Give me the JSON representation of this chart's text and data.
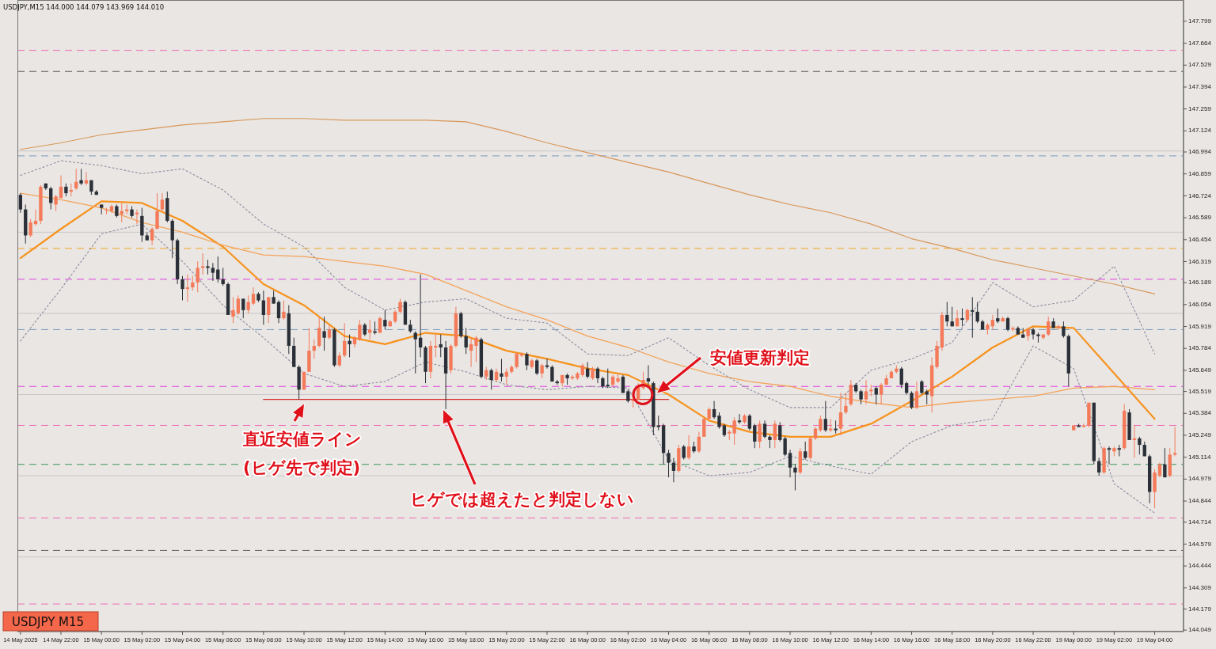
{
  "chart_data": {
    "type": "candlestick",
    "categories": [
      "14 May 2025",
      null,
      null,
      null,
      null,
      null,
      null,
      null,
      "14 May 22:00",
      null,
      null,
      null,
      null,
      null,
      null,
      null,
      "15 May 00:00",
      null,
      null,
      null,
      null,
      null,
      null,
      null,
      "15 May 02:00",
      null,
      null,
      null,
      null,
      null,
      null,
      null,
      "15 May 04:00",
      null,
      null,
      null,
      null,
      null,
      null,
      null,
      "15 May 06:00",
      null,
      null,
      null,
      null,
      null,
      null,
      null,
      "15 May 08:00",
      null,
      null,
      null,
      null,
      null,
      null,
      null,
      "15 May 10:00",
      null,
      null,
      null,
      null,
      null,
      null,
      null,
      "15 May 12:00",
      null,
      null,
      null,
      null,
      null,
      null,
      null,
      "15 May 14:00",
      null,
      null,
      null,
      null,
      null,
      null,
      null,
      "15 May 16:00",
      null,
      null,
      null,
      null,
      null,
      null,
      null,
      "15 May 18:00",
      null,
      null,
      null,
      null,
      null,
      null,
      null,
      "15 May 20:00",
      null,
      null,
      null,
      null,
      null,
      null,
      null,
      "15 May 22:00",
      null,
      null,
      null,
      null,
      null,
      null,
      null,
      "16 May 00:00",
      null,
      null,
      null,
      null,
      null,
      null,
      null,
      "16 May 02:00",
      null,
      null,
      null,
      null,
      null,
      null,
      null,
      "16 May 04:00",
      null,
      null,
      null,
      null,
      null,
      null,
      null,
      "16 May 06:00",
      null,
      null,
      null,
      null,
      null,
      null,
      null,
      "16 May 08:00",
      null,
      null,
      null,
      null,
      null,
      null,
      null,
      "16 May 10:00",
      null,
      null,
      null,
      null,
      null,
      null,
      null,
      "16 May 12:00",
      null,
      null,
      null,
      null,
      null,
      null,
      null,
      "16 May 14:00",
      null,
      null,
      null,
      null,
      null,
      null,
      null,
      "16 May 16:00",
      null,
      null,
      null,
      null,
      null,
      null,
      null,
      "16 May 18:00",
      null,
      null,
      null,
      null,
      null,
      null,
      null,
      "16 May 20:00",
      null,
      null,
      null,
      null,
      null,
      null,
      null,
      "16 May 22:00",
      null,
      null,
      null,
      null,
      null,
      null,
      null,
      "19 May 00:00",
      null,
      null,
      null,
      null,
      null,
      null,
      null,
      "19 May 02:00",
      null,
      null,
      null,
      null,
      null,
      null,
      null,
      "19 May 04:00",
      null,
      null,
      null,
      null
    ],
    "colors": [
      "#2b3038",
      "#2b3038",
      "#f47a5a",
      "#f47a5a",
      "#f47a5a",
      "#2b3038",
      "#2b3038",
      "#f47a5a",
      "#f47a5a",
      "#2b3038",
      "#f47a5a",
      "#f47a5a",
      "#2b3038",
      "#f47a5a",
      "#2b3038",
      "#2b3038",
      "#2b3038",
      "#f47a5a",
      "#f47a5a",
      "#2b3038",
      "#f47a5a",
      "#f47a5a",
      "#2b3038",
      "#f47a5a",
      "#2b3038",
      "#2b3038",
      "#f47a5a",
      "#f47a5a",
      "#f47a5a",
      "#2b3038",
      "#2b3038",
      "#2b3038",
      "#2b3038",
      "#f47a5a",
      "#f47a5a",
      "#f47a5a",
      "#f47a5a",
      "#2b3038",
      "#2b3038",
      "#2b3038",
      "#2b3038",
      "#2b3038",
      "#f47a5a",
      "#f47a5a",
      "#2b3038",
      "#f47a5a",
      "#f47a5a",
      "#2b3038",
      "#2b3038",
      "#f47a5a",
      "#2b3038",
      "#2b3038",
      "#f47a5a",
      "#2b3038",
      "#2b3038",
      "#2b3038",
      "#f47a5a",
      "#f47a5a",
      "#f47a5a",
      "#f47a5a",
      "#2b3038",
      "#f47a5a",
      "#2b3038",
      "#f47a5a",
      "#f47a5a",
      "#2b3038",
      "#f47a5a",
      "#f47a5a",
      "#2b3038",
      "#f47a5a",
      "#2b3038",
      "#f47a5a",
      "#2b3038",
      "#f47a5a",
      "#f47a5a",
      "#f47a5a",
      "#2b3038",
      "#2b3038",
      "#2b3038",
      "#2b3038",
      "#2b3038",
      "#f47a5a",
      "#f47a5a",
      "#2b3038",
      "#2b3038",
      "#f47a5a",
      "#f47a5a",
      "#2b3038",
      "#2b3038",
      "#f47a5a",
      "#f47a5a",
      "#2b3038",
      "#f47a5a",
      "#2b3038",
      "#f47a5a",
      "#2b3038",
      "#f47a5a",
      "#f47a5a",
      "#f47a5a",
      "#f47a5a",
      "#2b3038",
      "#f47a5a",
      "#2b3038",
      "#f47a5a",
      "#2b3038",
      "#2b3038",
      "#2b3038",
      "#f47a5a",
      "#2b3038",
      "#f47a5a",
      "#f47a5a",
      "#f47a5a",
      "#2b3038",
      "#f47a5a",
      "#2b3038",
      "#2b3038",
      "#2b3038",
      "#f47a5a",
      "#f47a5a",
      "#2b3038",
      "#2b3038",
      "#f47a5a",
      "#f47a5a",
      "#f47a5a",
      "#2b3038",
      "#2b3038",
      "#2b3038",
      "#2b3038",
      "#2b3038",
      "#2b3038",
      "#f47a5a",
      "#2b3038",
      "#f47a5a",
      "#2b3038",
      "#f47a5a",
      "#f47a5a",
      "#f47a5a",
      "#2b3038",
      "#2b3038",
      "#2b3038",
      "#f47a5a",
      "#f47a5a",
      "#2b3038",
      "#f47a5a",
      "#2b3038",
      "#2b3038",
      "#f47a5a",
      "#2b3038",
      "#2b3038",
      "#f47a5a",
      "#2b3038",
      "#2b3038",
      "#2b3038",
      "#2b3038",
      "#f47a5a",
      "#2b3038",
      "#f47a5a",
      "#f47a5a",
      "#f47a5a",
      "#2b3038",
      "#f47a5a",
      "#2b3038",
      "#f47a5a",
      "#f47a5a",
      "#f47a5a",
      "#2b3038",
      "#2b3038",
      "#f47a5a",
      "#f47a5a",
      "#2b3038",
      "#f47a5a",
      "#f47a5a",
      "#f47a5a",
      "#f47a5a",
      "#2b3038",
      "#2b3038",
      "#2b3038",
      "#f47a5a",
      "#2b3038",
      "#2b3038",
      "#f47a5a",
      "#f47a5a",
      "#f47a5a",
      "#2b3038",
      "#2b3038",
      "#f47a5a",
      "#2b3038",
      "#f47a5a",
      "#2b3038",
      "#2b3038",
      "#2b3038",
      "#f47a5a",
      "#f47a5a",
      "#2b3038",
      "#f47a5a",
      "#2b3038",
      "#f47a5a",
      "#2b3038",
      "#2b3038",
      "#f47a5a",
      "#2b3038",
      "#2b3038",
      "#f47a5a",
      "#f47a5a",
      "#2b3038",
      "#f47a5a",
      "#2b3038",
      "#2b3038",
      "#f47a5a",
      "#2b3038",
      "#f47a5a",
      "#f47a5a",
      "#2b3038",
      "#2b3038",
      "#f47a5a",
      "#2b3038",
      "#f47a5a",
      "#2b3038",
      "#f47a5a",
      "#2b3038",
      "#f47a5a",
      "#2b3038",
      "#2b3038",
      "#2b3038",
      "#f47a5a",
      "#f47a5a",
      "#2b3038",
      "#f47a5a",
      "#f47a5a"
    ],
    "ohlc": [
      [
        146.73,
        146.74,
        146.62,
        146.64
      ],
      [
        146.64,
        146.67,
        146.43,
        146.48
      ],
      [
        146.48,
        146.58,
        146.47,
        146.56
      ],
      [
        146.55,
        146.64,
        146.54,
        146.57
      ],
      [
        146.57,
        146.79,
        146.55,
        146.78
      ],
      [
        146.8,
        146.8,
        146.76,
        146.77
      ],
      [
        146.77,
        146.78,
        146.64,
        146.68
      ],
      [
        146.67,
        146.73,
        146.63,
        146.72
      ],
      [
        146.71,
        146.85,
        146.71,
        146.78
      ],
      [
        146.78,
        146.8,
        146.72,
        146.74
      ],
      [
        146.75,
        146.8,
        146.72,
        146.76
      ],
      [
        146.77,
        146.89,
        146.76,
        146.81
      ],
      [
        146.82,
        146.89,
        146.79,
        146.8
      ],
      [
        146.8,
        146.87,
        146.79,
        146.82
      ],
      [
        146.82,
        146.82,
        146.73,
        146.75
      ],
      [
        146.75,
        146.76,
        146.73,
        146.73
      ],
      [
        146.67,
        146.67,
        146.61,
        146.65
      ],
      [
        146.64,
        146.65,
        146.61,
        146.64
      ],
      [
        146.63,
        146.67,
        146.62,
        146.66
      ],
      [
        146.66,
        146.67,
        146.59,
        146.6
      ],
      [
        146.61,
        146.68,
        146.56,
        146.63
      ],
      [
        146.63,
        146.67,
        146.61,
        146.64
      ],
      [
        146.64,
        146.66,
        146.59,
        146.6
      ],
      [
        146.61,
        146.64,
        146.55,
        146.62
      ],
      [
        146.6,
        146.65,
        146.44,
        146.48
      ],
      [
        146.48,
        146.5,
        146.45,
        146.45
      ],
      [
        146.45,
        146.53,
        146.42,
        146.52
      ],
      [
        146.52,
        146.74,
        146.52,
        146.63
      ],
      [
        146.64,
        146.74,
        146.63,
        146.7
      ],
      [
        146.71,
        146.75,
        146.56,
        146.57
      ],
      [
        146.57,
        146.58,
        146.34,
        146.45
      ],
      [
        146.45,
        146.46,
        146.18,
        146.21
      ],
      [
        146.21,
        146.23,
        146.08,
        146.15
      ],
      [
        146.15,
        146.24,
        146.07,
        146.16
      ],
      [
        146.16,
        146.23,
        146.14,
        146.19
      ],
      [
        146.19,
        146.32,
        146.13,
        146.28
      ],
      [
        146.28,
        146.37,
        146.24,
        146.29
      ],
      [
        146.29,
        146.33,
        146.24,
        146.28
      ],
      [
        146.28,
        146.31,
        146.2,
        146.25
      ],
      [
        146.27,
        146.35,
        146.19,
        146.21
      ],
      [
        146.21,
        146.28,
        146.17,
        146.18
      ],
      [
        146.18,
        146.19,
        145.99,
        145.99
      ],
      [
        145.98,
        146.1,
        145.94,
        146.02
      ],
      [
        146.0,
        146.11,
        145.99,
        146.09
      ],
      [
        146.09,
        146.09,
        145.97,
        146.02
      ],
      [
        146.02,
        146.11,
        146.0,
        146.07
      ],
      [
        146.06,
        146.16,
        146.05,
        146.12
      ],
      [
        146.12,
        146.13,
        146.07,
        146.08
      ],
      [
        146.08,
        146.14,
        145.93,
        145.99
      ],
      [
        145.99,
        146.1,
        145.94,
        146.1
      ],
      [
        146.1,
        146.14,
        146.06,
        146.06
      ],
      [
        146.07,
        146.08,
        145.94,
        145.97
      ],
      [
        145.97,
        146.08,
        145.96,
        146.01
      ],
      [
        146.0,
        146.05,
        145.75,
        145.8
      ],
      [
        145.8,
        145.85,
        145.67,
        145.67
      ],
      [
        145.67,
        145.68,
        145.47,
        145.53
      ],
      [
        145.53,
        145.64,
        145.53,
        145.64
      ],
      [
        145.64,
        145.91,
        145.64,
        145.77
      ],
      [
        145.77,
        145.84,
        145.72,
        145.8
      ],
      [
        145.8,
        145.98,
        145.79,
        145.91
      ],
      [
        145.89,
        145.98,
        145.77,
        145.85
      ],
      [
        145.85,
        145.93,
        145.84,
        145.9
      ],
      [
        145.9,
        145.91,
        145.67,
        145.68
      ],
      [
        145.68,
        145.76,
        145.67,
        145.74
      ],
      [
        145.74,
        145.94,
        145.73,
        145.83
      ],
      [
        145.83,
        145.87,
        145.73,
        145.81
      ],
      [
        145.81,
        145.86,
        145.79,
        145.85
      ],
      [
        145.84,
        145.96,
        145.83,
        145.93
      ],
      [
        145.93,
        145.94,
        145.86,
        145.87
      ],
      [
        145.88,
        145.96,
        145.84,
        145.9
      ],
      [
        145.89,
        145.95,
        145.87,
        145.88
      ],
      [
        145.88,
        145.98,
        145.88,
        145.97
      ],
      [
        145.96,
        146.02,
        145.9,
        145.92
      ],
      [
        145.92,
        145.96,
        145.92,
        145.95
      ],
      [
        145.95,
        146.02,
        145.94,
        146.01
      ],
      [
        146.01,
        146.09,
        146.0,
        146.07
      ],
      [
        146.07,
        146.08,
        145.93,
        145.93
      ],
      [
        145.93,
        145.96,
        145.88,
        145.89
      ],
      [
        145.88,
        145.89,
        145.63,
        145.84
      ],
      [
        145.85,
        146.24,
        145.73,
        145.79
      ],
      [
        145.79,
        145.8,
        145.57,
        145.64
      ],
      [
        145.64,
        145.83,
        145.6,
        145.8
      ],
      [
        145.79,
        145.87,
        145.73,
        145.8
      ],
      [
        145.81,
        145.87,
        145.73,
        145.79
      ],
      [
        145.79,
        145.83,
        145.41,
        145.63
      ],
      [
        145.65,
        145.81,
        145.63,
        145.8
      ],
      [
        145.8,
        146.04,
        145.79,
        146.0
      ],
      [
        146.0,
        146.01,
        145.85,
        145.86
      ],
      [
        145.86,
        145.91,
        145.75,
        145.79
      ],
      [
        145.77,
        145.85,
        145.67,
        145.81
      ],
      [
        145.8,
        145.86,
        145.7,
        145.85
      ],
      [
        145.84,
        145.85,
        145.6,
        145.61
      ],
      [
        145.61,
        145.67,
        145.59,
        145.65
      ],
      [
        145.65,
        145.66,
        145.53,
        145.59
      ],
      [
        145.59,
        145.66,
        145.58,
        145.64
      ],
      [
        145.63,
        145.72,
        145.58,
        145.61
      ],
      [
        145.61,
        145.66,
        145.56,
        145.64
      ],
      [
        145.64,
        145.68,
        145.63,
        145.67
      ],
      [
        145.67,
        145.76,
        145.66,
        145.75
      ],
      [
        145.74,
        145.76,
        145.73,
        145.75
      ],
      [
        145.75,
        145.76,
        145.65,
        145.68
      ],
      [
        145.67,
        145.72,
        145.66,
        145.71
      ],
      [
        145.71,
        145.72,
        145.62,
        145.63
      ],
      [
        145.63,
        145.69,
        145.6,
        145.68
      ],
      [
        145.68,
        145.72,
        145.66,
        145.67
      ],
      [
        145.67,
        145.68,
        145.58,
        145.58
      ],
      [
        145.58,
        145.59,
        145.56,
        145.57
      ],
      [
        145.57,
        145.62,
        145.55,
        145.62
      ],
      [
        145.62,
        145.63,
        145.56,
        145.6
      ],
      [
        145.6,
        145.62,
        145.59,
        145.61
      ],
      [
        145.6,
        145.64,
        145.59,
        145.63
      ],
      [
        145.62,
        145.69,
        145.61,
        145.68
      ],
      [
        145.66,
        145.7,
        145.6,
        145.61
      ],
      [
        145.6,
        145.67,
        145.59,
        145.66
      ],
      [
        145.66,
        145.67,
        145.57,
        145.6
      ],
      [
        145.6,
        145.61,
        145.54,
        145.55
      ],
      [
        145.56,
        145.66,
        145.54,
        145.55
      ],
      [
        145.56,
        145.62,
        145.55,
        145.61
      ],
      [
        145.58,
        145.63,
        145.57,
        145.6
      ],
      [
        145.61,
        145.62,
        145.51,
        145.51
      ],
      [
        145.52,
        145.53,
        145.45,
        145.46
      ],
      [
        145.46,
        145.48,
        145.42,
        145.47
      ],
      [
        145.47,
        145.57,
        145.47,
        145.55
      ],
      [
        145.54,
        145.64,
        145.53,
        145.59
      ],
      [
        145.6,
        145.68,
        145.56,
        145.58
      ],
      [
        145.57,
        145.58,
        145.25,
        145.3
      ],
      [
        145.31,
        145.37,
        145.28,
        145.3
      ],
      [
        145.31,
        145.32,
        145.07,
        145.14
      ],
      [
        145.14,
        145.16,
        144.99,
        145.08
      ],
      [
        145.08,
        145.11,
        144.96,
        145.03
      ],
      [
        145.03,
        145.19,
        145.02,
        145.17
      ],
      [
        145.18,
        145.19,
        145.1,
        145.11
      ],
      [
        145.11,
        145.25,
        145.1,
        145.18
      ],
      [
        145.18,
        145.21,
        145.14,
        145.15
      ],
      [
        145.15,
        145.27,
        145.14,
        145.24
      ],
      [
        145.24,
        145.36,
        145.24,
        145.35
      ],
      [
        145.35,
        145.42,
        145.35,
        145.41
      ],
      [
        145.41,
        145.46,
        145.35,
        145.36
      ],
      [
        145.37,
        145.39,
        145.29,
        145.3
      ],
      [
        145.31,
        145.32,
        145.24,
        145.25
      ],
      [
        145.26,
        145.28,
        145.22,
        145.27
      ],
      [
        145.26,
        145.36,
        145.19,
        145.34
      ],
      [
        145.34,
        145.38,
        145.32,
        145.33
      ],
      [
        145.33,
        145.38,
        145.32,
        145.37
      ],
      [
        145.37,
        145.38,
        145.28,
        145.29
      ],
      [
        145.31,
        145.32,
        145.17,
        145.21
      ],
      [
        145.21,
        145.34,
        145.17,
        145.32
      ],
      [
        145.32,
        145.34,
        145.23,
        145.24
      ],
      [
        145.24,
        145.25,
        145.17,
        145.22
      ],
      [
        145.22,
        145.34,
        145.17,
        145.32
      ],
      [
        145.31,
        145.33,
        145.21,
        145.22
      ],
      [
        145.23,
        145.24,
        145.12,
        145.13
      ],
      [
        145.14,
        145.16,
        144.99,
        145.05
      ],
      [
        145.05,
        145.07,
        144.91,
        145.02
      ],
      [
        145.02,
        145.17,
        145.01,
        145.15
      ],
      [
        145.15,
        145.21,
        145.1,
        145.11
      ],
      [
        145.11,
        145.24,
        145.1,
        145.23
      ],
      [
        145.23,
        145.3,
        145.22,
        145.29
      ],
      [
        145.28,
        145.37,
        145.27,
        145.35
      ],
      [
        145.35,
        145.46,
        145.27,
        145.28
      ],
      [
        145.28,
        145.35,
        145.27,
        145.29
      ],
      [
        145.29,
        145.34,
        145.26,
        145.28
      ],
      [
        145.29,
        145.51,
        145.25,
        145.39
      ],
      [
        145.39,
        145.51,
        145.38,
        145.43
      ],
      [
        145.44,
        145.59,
        145.43,
        145.56
      ],
      [
        145.56,
        145.57,
        145.51,
        145.52
      ],
      [
        145.52,
        145.53,
        145.44,
        145.47
      ],
      [
        145.47,
        145.59,
        145.44,
        145.52
      ],
      [
        145.52,
        145.56,
        145.49,
        145.53
      ],
      [
        145.54,
        145.55,
        145.44,
        145.5
      ],
      [
        145.5,
        145.57,
        145.44,
        145.56
      ],
      [
        145.56,
        145.62,
        145.56,
        145.6
      ],
      [
        145.6,
        145.65,
        145.6,
        145.64
      ],
      [
        145.64,
        145.68,
        145.63,
        145.66
      ],
      [
        145.66,
        145.67,
        145.54,
        145.56
      ],
      [
        145.57,
        145.58,
        145.5,
        145.51
      ],
      [
        145.51,
        145.52,
        145.41,
        145.42
      ],
      [
        145.42,
        145.58,
        145.41,
        145.52
      ],
      [
        145.58,
        145.59,
        145.5,
        145.51
      ],
      [
        145.52,
        145.53,
        145.44,
        145.5
      ],
      [
        145.49,
        145.73,
        145.39,
        145.68
      ],
      [
        145.67,
        145.83,
        145.66,
        145.8
      ],
      [
        145.79,
        146.01,
        145.77,
        145.99
      ],
      [
        145.99,
        146.07,
        145.92,
        145.95
      ],
      [
        145.95,
        146.04,
        145.92,
        145.92
      ],
      [
        145.92,
        146.02,
        145.92,
        145.97
      ],
      [
        145.97,
        146.03,
        145.92,
        145.96
      ],
      [
        145.96,
        146.03,
        145.95,
        146.02
      ],
      [
        146.02,
        146.1,
        145.85,
        146.01
      ],
      [
        146.01,
        146.07,
        145.94,
        145.95
      ],
      [
        145.95,
        145.96,
        145.9,
        145.9
      ],
      [
        145.9,
        145.94,
        145.87,
        145.93
      ],
      [
        145.92,
        145.99,
        145.9,
        145.96
      ],
      [
        145.97,
        146.03,
        145.94,
        145.95
      ],
      [
        145.95,
        145.98,
        145.95,
        145.97
      ],
      [
        145.97,
        145.98,
        145.89,
        145.9
      ],
      [
        145.9,
        145.92,
        145.89,
        145.91
      ],
      [
        145.91,
        145.92,
        145.87,
        145.87
      ],
      [
        145.87,
        145.91,
        145.85,
        145.85
      ],
      [
        145.86,
        145.91,
        145.83,
        145.9
      ],
      [
        145.9,
        145.91,
        145.84,
        145.87
      ],
      [
        145.87,
        145.88,
        145.82,
        145.86
      ],
      [
        145.85,
        145.87,
        145.84,
        145.87
      ],
      [
        145.87,
        145.98,
        145.86,
        145.95
      ],
      [
        145.95,
        145.97,
        145.91,
        145.91
      ],
      [
        145.91,
        145.93,
        145.9,
        145.92
      ],
      [
        145.92,
        145.95,
        145.85,
        145.86
      ],
      [
        145.86,
        145.87,
        145.55,
        145.63
      ],
      [
        145.28,
        145.31,
        145.28,
        145.31
      ],
      [
        145.31,
        145.32,
        145.3,
        145.3
      ],
      [
        145.3,
        145.32,
        145.3,
        145.31
      ],
      [
        145.31,
        145.45,
        145.3,
        145.45
      ],
      [
        145.45,
        145.45,
        145.07,
        145.09
      ],
      [
        145.09,
        145.11,
        145.0,
        145.02
      ],
      [
        145.02,
        145.18,
        145.01,
        145.17
      ],
      [
        145.17,
        145.18,
        145.07,
        145.16
      ],
      [
        145.15,
        145.18,
        145.12,
        145.17
      ],
      [
        145.17,
        145.19,
        145.12,
        145.16
      ],
      [
        145.17,
        145.44,
        145.16,
        145.4
      ],
      [
        145.39,
        145.41,
        145.22,
        145.22
      ],
      [
        145.22,
        145.31,
        145.11,
        145.23
      ],
      [
        145.23,
        145.24,
        145.13,
        145.19
      ],
      [
        145.19,
        145.21,
        145.12,
        145.12
      ],
      [
        145.12,
        145.13,
        144.83,
        144.9
      ],
      [
        144.9,
        145.04,
        144.8,
        145.02
      ],
      [
        145.0,
        145.08,
        144.99,
        145.07
      ],
      [
        145.07,
        145.17,
        144.99,
        144.99
      ],
      [
        145.0,
        145.17,
        144.99,
        145.13
      ],
      [
        145.13,
        145.3,
        145.12,
        145.14
      ]
    ],
    "series": [
      {
        "type": "line",
        "color": "#f7931e",
        "line_style": "solid",
        "x": [
          "14 May 2025",
          "14 May 22:00",
          "15 May 00:00",
          "15 May 02:00",
          "15 May 04:00",
          "15 May 06:00",
          "15 May 08:00",
          "15 May 10:00",
          "15 May 12:00",
          "15 May 14:00",
          "15 May 16:00",
          "15 May 18:00",
          "15 May 20:00",
          "15 May 22:00",
          "16 May 00:00",
          "16 May 02:00",
          "16 May 04:00",
          "16 May 06:00",
          "16 May 08:00",
          "16 May 10:00",
          "16 May 12:00",
          "16 May 14:00",
          "16 May 16:00",
          "16 May 18:00",
          "16 May 20:00",
          "16 May 22:00",
          "19 May 00:00",
          "19 May 02:00",
          "19 May 04:00"
        ],
        "values": [
          146.34,
          146.52,
          146.69,
          146.68,
          146.57,
          146.41,
          146.18,
          146.05,
          145.86,
          145.81,
          145.88,
          145.86,
          145.77,
          145.72,
          145.66,
          145.62,
          145.5,
          145.34,
          145.27,
          145.24,
          145.24,
          145.32,
          145.46,
          145.61,
          145.79,
          145.92,
          145.91,
          145.63,
          145.35
        ]
      },
      {
        "type": "line",
        "color": "#f5a35a",
        "line_style": "solid",
        "x": [
          "14 May 2025",
          "14 May 22:00",
          "15 May 00:00",
          "15 May 02:00",
          "15 May 04:00",
          "15 May 06:00",
          "15 May 08:00",
          "15 May 10:00",
          "15 May 12:00",
          "15 May 14:00",
          "15 May 16:00",
          "15 May 18:00",
          "15 May 20:00",
          "15 May 22:00",
          "16 May 00:00",
          "16 May 02:00",
          "16 May 04:00",
          "16 May 06:00",
          "16 May 08:00",
          "16 May 10:00",
          "16 May 12:00",
          "16 May 14:00",
          "16 May 16:00",
          "16 May 18:00",
          "16 May 20:00",
          "16 May 22:00",
          "19 May 00:00",
          "19 May 02:00",
          "19 May 04:00"
        ],
        "values": [
          146.74,
          146.7,
          146.65,
          146.56,
          146.5,
          146.42,
          146.36,
          146.35,
          146.32,
          146.29,
          146.24,
          146.14,
          146.04,
          145.96,
          145.86,
          145.79,
          145.7,
          145.63,
          145.58,
          145.55,
          145.49,
          145.45,
          145.42,
          145.45,
          145.47,
          145.49,
          145.54,
          145.55,
          145.53
        ]
      },
      {
        "type": "line",
        "color": "#d9975a",
        "line_style": "solid",
        "x": [
          "14 May 2025",
          "14 May 22:00",
          "15 May 00:00",
          "15 May 02:00",
          "15 May 04:00",
          "15 May 06:00",
          "15 May 08:00",
          "15 May 10:00",
          "15 May 12:00",
          "15 May 14:00",
          "15 May 16:00",
          "15 May 18:00",
          "15 May 20:00",
          "15 May 22:00",
          "16 May 00:00",
          "16 May 02:00",
          "16 May 04:00",
          "16 May 06:00",
          "16 May 08:00",
          "16 May 10:00",
          "16 May 12:00",
          "16 May 14:00",
          "16 May 16:00",
          "16 May 18:00",
          "16 May 20:00",
          "16 May 22:00",
          "19 May 00:00",
          "19 May 02:00",
          "19 May 04:00"
        ],
        "values": [
          147.01,
          147.05,
          147.1,
          147.13,
          147.16,
          147.18,
          147.2,
          147.2,
          147.19,
          147.19,
          147.19,
          147.18,
          147.12,
          147.05,
          146.99,
          146.93,
          146.87,
          146.8,
          146.73,
          146.67,
          146.62,
          146.55,
          146.46,
          146.4,
          146.33,
          146.28,
          146.23,
          146.18,
          146.12
        ]
      },
      {
        "type": "line",
        "color": "#8c8ca0",
        "line_style": "dotted",
        "x": [
          "14 May 2025",
          "14 May 22:00",
          "15 May 00:00",
          "15 May 02:00",
          "15 May 04:00",
          "15 May 06:00",
          "15 May 08:00",
          "15 May 10:00",
          "15 May 12:00",
          "15 May 14:00",
          "15 May 16:00",
          "15 May 18:00",
          "15 May 20:00",
          "15 May 22:00",
          "16 May 00:00",
          "16 May 02:00",
          "16 May 04:00",
          "16 May 06:00",
          "16 May 08:00",
          "16 May 10:00",
          "16 May 12:00",
          "16 May 14:00",
          "16 May 16:00",
          "16 May 18:00",
          "16 May 20:00",
          "16 May 22:00",
          "19 May 00:00",
          "19 May 02:00",
          "19 May 04:00"
        ],
        "values": [
          146.85,
          146.94,
          146.91,
          146.86,
          146.89,
          146.76,
          146.55,
          146.41,
          146.16,
          146.02,
          146.07,
          146.09,
          145.97,
          145.94,
          145.75,
          145.74,
          145.85,
          145.68,
          145.53,
          145.42,
          145.42,
          145.65,
          145.72,
          145.82,
          146.19,
          146.04,
          146.08,
          146.29,
          145.75
        ]
      },
      {
        "type": "line",
        "color": "#8c8ca0",
        "line_style": "dotted",
        "x": [
          "14 May 2025",
          "14 May 22:00",
          "15 May 00:00",
          "15 May 02:00",
          "15 May 04:00",
          "15 May 06:00",
          "15 May 08:00",
          "15 May 10:00",
          "15 May 12:00",
          "15 May 14:00",
          "15 May 16:00",
          "15 May 18:00",
          "15 May 20:00",
          "15 May 22:00",
          "16 May 00:00",
          "16 May 02:00",
          "16 May 04:00",
          "16 May 06:00",
          "16 May 08:00",
          "16 May 10:00",
          "16 May 12:00",
          "16 May 14:00",
          "16 May 16:00",
          "16 May 18:00",
          "16 May 20:00",
          "16 May 22:00",
          "19 May 00:00",
          "19 May 02:00",
          "19 May 04:00"
        ],
        "values": [
          145.83,
          146.15,
          146.49,
          146.55,
          146.32,
          146.05,
          145.85,
          145.63,
          145.55,
          145.58,
          145.7,
          145.64,
          145.56,
          145.53,
          145.55,
          145.54,
          145.1,
          145.0,
          145.02,
          145.12,
          145.06,
          145.01,
          145.21,
          145.31,
          145.35,
          145.8,
          145.66,
          144.95,
          144.77
        ]
      },
      {
        "type": "line",
        "color": "#d42a2a",
        "line_style": "solid",
        "x": [
          "15 May 08:00",
          "16 May 04:00"
        ],
        "values": [
          145.47,
          145.47
        ]
      }
    ],
    "ref_lines": [
      {
        "axis": "y",
        "value": 147.62,
        "color": "#f06ab4",
        "line_style": "dashed"
      },
      {
        "axis": "y",
        "value": 147.49,
        "color": "#606060",
        "line_style": "dashed"
      },
      {
        "axis": "y",
        "value": 147.0,
        "color": "#c8c8c8",
        "line_style": "solid"
      },
      {
        "axis": "y",
        "value": 146.97,
        "color": "#7b9cbf",
        "line_style": "dashed"
      },
      {
        "axis": "y",
        "value": 146.5,
        "color": "#c8c8c8",
        "line_style": "solid"
      },
      {
        "axis": "y",
        "value": 146.4,
        "color": "#f5a623",
        "line_style": "dashed"
      },
      {
        "axis": "y",
        "value": 146.21,
        "color": "#e040e0",
        "line_style": "dashed"
      },
      {
        "axis": "y",
        "value": 146.0,
        "color": "#c8c8c8",
        "line_style": "solid"
      },
      {
        "axis": "y",
        "value": 145.9,
        "color": "#7b9cbf",
        "line_style": "dashed"
      },
      {
        "axis": "y",
        "value": 145.55,
        "color": "#e040e0",
        "line_style": "dashed"
      },
      {
        "axis": "y",
        "value": 145.5,
        "color": "#c8c8c8",
        "line_style": "solid"
      },
      {
        "axis": "y",
        "value": 145.31,
        "color": "#f06ab4",
        "line_style": "dashed"
      },
      {
        "axis": "y",
        "value": 145.07,
        "color": "#3c9a5f",
        "line_style": "dashed"
      },
      {
        "axis": "y",
        "value": 145.0,
        "color": "#c8c8c8",
        "line_style": "solid"
      },
      {
        "axis": "y",
        "value": 144.74,
        "color": "#f06ab4",
        "line_style": "dashed"
      },
      {
        "axis": "y",
        "value": 144.54,
        "color": "#606060",
        "line_style": "dashed"
      },
      {
        "axis": "y",
        "value": 144.5,
        "color": "#c8c8c8",
        "line_style": "solid"
      },
      {
        "axis": "y",
        "value": 144.21,
        "color": "#f06ab4",
        "line_style": "dashed"
      }
    ],
    "ylim": [
      144.04,
      147.93
    ],
    "yticks": [
      147.799,
      147.664,
      147.529,
      147.394,
      147.259,
      147.124,
      146.994,
      146.859,
      146.724,
      146.589,
      146.454,
      146.319,
      146.189,
      146.054,
      145.919,
      145.784,
      145.649,
      145.519,
      145.384,
      145.249,
      145.114,
      144.979,
      144.844,
      144.714,
      144.579,
      144.444,
      144.309,
      144.179,
      144.049
    ],
    "annotations": [
      "USDJPY,M15  144.000 144.079 143.969 144.010",
      "USDJPY M15",
      {
        "text": "直近安値ライン\n(ヒゲ先で判定)",
        "y": 145.47
      },
      "ヒゲでは超えたと判定しない",
      {
        "text": "安値更新判定",
        "y": 145.5
      }
    ]
  }
}
